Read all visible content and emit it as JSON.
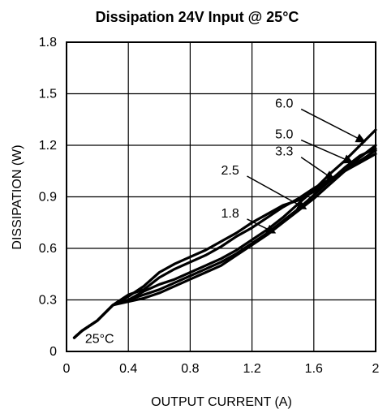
{
  "chart_data": {
    "type": "line",
    "title": "Dissipation 24V Input @ 25°C",
    "xlabel": "OUTPUT CURRENT (A)",
    "ylabel": "DISSIPATION (W)",
    "xlim": [
      0,
      2
    ],
    "ylim": [
      0,
      1.8
    ],
    "x_ticks": [
      0,
      0.4,
      0.8,
      1.2,
      1.6,
      2
    ],
    "x_tick_labels": [
      "0",
      "0.4",
      "0.8",
      "1.2",
      "1.6",
      "2"
    ],
    "y_ticks": [
      0,
      0.3,
      0.6,
      0.9,
      1.2,
      1.5,
      1.8
    ],
    "y_tick_labels": [
      "0",
      "0.3",
      "0.6",
      "0.9",
      "1.2",
      "1.5",
      "1.8"
    ],
    "grid": true,
    "annotations": [
      {
        "text": "25°C",
        "x": 0.12,
        "y": 0.05
      }
    ],
    "series": [
      {
        "name": "6.0",
        "label_pos": [
          1.35,
          1.42
        ],
        "arrow_to": [
          1.93,
          1.22
        ],
        "x": [
          0.05,
          0.1,
          0.2,
          0.3,
          0.4,
          0.5,
          0.6,
          0.7,
          0.8,
          0.9,
          1.0,
          1.1,
          1.2,
          1.3,
          1.4,
          1.5,
          1.6,
          1.7,
          1.8,
          1.9,
          2.0
        ],
        "y": [
          0.08,
          0.12,
          0.18,
          0.27,
          0.3,
          0.35,
          0.39,
          0.42,
          0.46,
          0.5,
          0.54,
          0.59,
          0.65,
          0.71,
          0.78,
          0.86,
          0.94,
          1.03,
          1.11,
          1.2,
          1.29
        ]
      },
      {
        "name": "5.0",
        "label_pos": [
          1.35,
          1.24
        ],
        "arrow_to": [
          1.85,
          1.1
        ],
        "x": [
          0.05,
          0.1,
          0.2,
          0.3,
          0.4,
          0.5,
          0.6,
          0.7,
          0.8,
          0.9,
          1.0,
          1.1,
          1.2,
          1.3,
          1.4,
          1.5,
          1.6,
          1.7,
          1.8,
          1.9,
          2.0
        ],
        "y": [
          0.08,
          0.12,
          0.18,
          0.27,
          0.29,
          0.31,
          0.34,
          0.38,
          0.42,
          0.46,
          0.5,
          0.56,
          0.62,
          0.68,
          0.75,
          0.82,
          0.89,
          0.97,
          1.05,
          1.13,
          1.2
        ]
      },
      {
        "name": "3.3",
        "label_pos": [
          1.35,
          1.14
        ],
        "arrow_to": [
          1.73,
          1.0
        ],
        "x": [
          0.05,
          0.1,
          0.2,
          0.3,
          0.4,
          0.5,
          0.6,
          0.7,
          0.8,
          0.9,
          1.0,
          1.1,
          1.2,
          1.3,
          1.4,
          1.5,
          1.6,
          1.7,
          1.8,
          1.9,
          2.0
        ],
        "y": [
          0.08,
          0.12,
          0.18,
          0.27,
          0.3,
          0.33,
          0.36,
          0.4,
          0.44,
          0.48,
          0.52,
          0.57,
          0.63,
          0.69,
          0.76,
          0.83,
          0.91,
          0.99,
          1.07,
          1.14,
          1.18
        ]
      },
      {
        "name": "2.5",
        "label_pos": [
          1.0,
          1.03
        ],
        "arrow_to": [
          1.55,
          0.83
        ],
        "x": [
          0.05,
          0.1,
          0.2,
          0.3,
          0.4,
          0.5,
          0.6,
          0.7,
          0.8,
          0.9,
          1.0,
          1.1,
          1.2,
          1.3,
          1.4,
          1.5,
          1.6,
          1.7,
          1.8,
          1.9,
          2.0
        ],
        "y": [
          0.08,
          0.12,
          0.18,
          0.27,
          0.32,
          0.38,
          0.46,
          0.51,
          0.55,
          0.59,
          0.64,
          0.69,
          0.75,
          0.8,
          0.85,
          0.88,
          0.93,
          0.99,
          1.05,
          1.11,
          1.17
        ]
      },
      {
        "name": "1.8",
        "label_pos": [
          1.0,
          0.78
        ],
        "arrow_to": [
          1.35,
          0.69
        ],
        "x": [
          0.05,
          0.1,
          0.2,
          0.3,
          0.4,
          0.5,
          0.6,
          0.7,
          0.8,
          0.9,
          1.0,
          1.1,
          1.2,
          1.3,
          1.4,
          1.5,
          1.6,
          1.7,
          1.8,
          1.9,
          2.0
        ],
        "y": [
          0.08,
          0.12,
          0.18,
          0.27,
          0.33,
          0.36,
          0.43,
          0.48,
          0.52,
          0.56,
          0.61,
          0.67,
          0.72,
          0.78,
          0.84,
          0.89,
          0.95,
          1.0,
          1.05,
          1.1,
          1.15
        ]
      }
    ]
  }
}
